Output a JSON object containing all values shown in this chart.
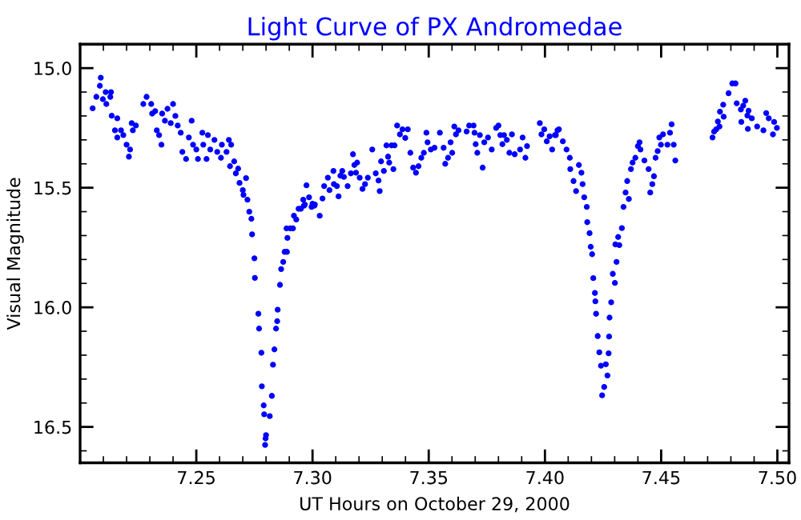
{
  "chart_data": {
    "type": "scatter",
    "title": "Light Curve of PX Andromedae",
    "xlabel": "UT Hours on October 29, 2000",
    "ylabel": "Visual Magnitude",
    "xlim": [
      7.2,
      7.505
    ],
    "ylim": [
      16.65,
      14.9
    ],
    "xticks": [
      {
        "value": 7.25,
        "label": "7.25"
      },
      {
        "value": 7.3,
        "label": "7.30"
      },
      {
        "value": 7.35,
        "label": "7.35"
      },
      {
        "value": 7.4,
        "label": "7.40"
      },
      {
        "value": 7.45,
        "label": "7.45"
      },
      {
        "value": 7.5,
        "label": "7.50"
      }
    ],
    "yticks": [
      {
        "value": 15.0,
        "label": "15.0"
      },
      {
        "value": 15.5,
        "label": "15.5"
      },
      {
        "value": 16.0,
        "label": "16.0"
      },
      {
        "value": 16.5,
        "label": "16.5"
      }
    ],
    "grid": false,
    "marker": "circle",
    "series": [
      {
        "color": "#0000ff",
        "x": [
          7.2054,
          7.2089,
          7.2085,
          7.207,
          7.2098,
          7.211,
          7.2133,
          7.213,
          7.2113,
          7.2136,
          7.216,
          7.215,
          7.216,
          7.2176,
          7.2186,
          7.22,
          7.221,
          7.2215,
          7.2222,
          7.2227,
          7.224,
          7.2272,
          7.2286,
          7.2306,
          7.231,
          7.2323,
          7.233,
          7.234,
          7.235,
          7.2353,
          7.2365,
          7.2376,
          7.239,
          7.24,
          7.241,
          7.242,
          7.2433,
          7.244,
          7.2456,
          7.2468,
          7.248,
          7.2486,
          7.25,
          7.2507,
          7.2526,
          7.253,
          7.2544,
          7.255,
          7.256,
          7.2578,
          7.259,
          7.2606,
          7.261,
          7.263,
          7.264,
          7.265,
          7.2645,
          7.2663,
          7.267,
          7.268,
          7.2686,
          7.27,
          7.2703,
          7.2714,
          7.272,
          7.2728,
          7.2737,
          7.274,
          7.275,
          7.2752,
          7.2767,
          7.277,
          7.278,
          7.2782,
          7.279,
          7.2792,
          7.2798,
          7.28,
          7.2796,
          7.2816,
          7.2825,
          7.283,
          7.2836,
          7.2843,
          7.2848,
          7.285,
          7.286,
          7.2865,
          7.2874,
          7.288,
          7.289,
          7.2892,
          7.2888,
          7.2904,
          7.2916,
          7.292,
          7.293,
          7.294,
          7.295,
          7.296,
          7.2963,
          7.2974,
          7.2985,
          7.3,
          7.3008,
          7.2967,
          7.2996,
          7.301,
          7.3031,
          7.3043,
          7.305,
          7.3066,
          7.3073,
          7.309,
          7.3092,
          7.3105,
          7.3112,
          7.312,
          7.3128,
          7.3135,
          7.3151,
          7.3165,
          7.3174,
          7.318,
          7.3187,
          7.3192,
          7.3203,
          7.3215,
          7.3226,
          7.3238,
          7.3257,
          7.3272,
          7.3284,
          7.3289,
          7.3295,
          7.3307,
          7.3318,
          7.3325,
          7.333,
          7.334,
          7.3348,
          7.3353,
          7.3364,
          7.3376,
          7.3387,
          7.3399,
          7.341,
          7.3421,
          7.3433,
          7.3445,
          7.3456,
          7.3468,
          7.3479,
          7.349,
          7.3495,
          7.3509,
          7.3525,
          7.3548,
          7.3564,
          7.3571,
          7.3583,
          7.3594,
          7.3601,
          7.361,
          7.3617,
          7.3628,
          7.3663,
          7.3674,
          7.3693,
          7.3697,
          7.3702,
          7.3709,
          7.372,
          7.3732,
          7.3739,
          7.3755,
          7.3771,
          7.379,
          7.38,
          7.3808,
          7.3817,
          7.3824,
          7.3836,
          7.3847,
          7.3858,
          7.387,
          7.3893,
          7.3904,
          7.3916,
          7.3923,
          7.3978,
          7.3985,
          7.3997,
          7.4008,
          7.402,
          7.4031,
          7.4043,
          7.4054,
          7.4047,
          7.406,
          7.4077,
          7.4093,
          7.4107,
          7.4109,
          7.4123,
          7.4134,
          7.4146,
          7.4157,
          7.4162,
          7.4169,
          7.418,
          7.4182,
          7.4192,
          7.4197,
          7.4203,
          7.4208,
          7.4215,
          7.4217,
          7.422,
          7.4227,
          7.4234,
          7.4241,
          7.4246,
          7.4255,
          7.4262,
          7.4269,
          7.4274,
          7.4276,
          7.4278,
          7.4285,
          7.4292,
          7.4301,
          7.4308,
          7.4303,
          7.432,
          7.4315,
          7.4331,
          7.4338,
          7.4347,
          7.4354,
          7.4361,
          7.437,
          7.4377,
          7.4389,
          7.44,
          7.4407,
          7.4411,
          7.4428,
          7.4446,
          7.4453,
          7.4462,
          7.4469,
          7.4476,
          7.4485,
          7.4492,
          7.4499,
          7.4508,
          7.4527,
          7.4538,
          7.4545,
          7.4554,
          7.4561,
          7.4721,
          7.4728,
          7.4737,
          7.4744,
          7.4751,
          7.4753,
          7.4767,
          7.4769,
          7.479,
          7.4806,
          7.482,
          7.4825,
          7.4843,
          7.4845,
          7.4853,
          7.4862,
          7.4871,
          7.4876,
          7.4873,
          7.489,
          7.4913,
          7.494,
          7.4952,
          7.4963,
          7.4981,
          7.4986,
          7.4998
        ],
        "values": [
          15.168,
          15.04,
          15.074,
          15.12,
          15.13,
          15.1,
          15.1,
          15.12,
          15.15,
          15.199,
          15.21,
          15.26,
          15.29,
          15.26,
          15.28,
          15.32,
          15.37,
          15.34,
          15.23,
          15.26,
          15.24,
          15.15,
          15.12,
          15.15,
          15.19,
          15.18,
          15.26,
          15.28,
          15.32,
          15.19,
          15.22,
          15.17,
          15.23,
          15.15,
          15.2,
          15.24,
          15.27,
          15.35,
          15.38,
          15.29,
          15.22,
          15.32,
          15.34,
          15.38,
          15.27,
          15.32,
          15.38,
          15.28,
          15.34,
          15.3,
          15.35,
          15.375,
          15.32,
          15.35,
          15.3,
          15.32,
          15.41,
          15.39,
          15.44,
          15.42,
          15.48,
          15.51,
          15.53,
          15.46,
          15.55,
          15.6,
          15.63,
          15.695,
          15.795,
          15.877,
          16.027,
          16.089,
          16.19,
          16.33,
          16.41,
          16.447,
          16.548,
          16.534,
          16.575,
          16.455,
          16.37,
          16.24,
          16.176,
          16.089,
          16.058,
          16.01,
          15.906,
          15.84,
          15.81,
          15.768,
          15.768,
          15.71,
          15.67,
          15.67,
          15.67,
          15.617,
          15.633,
          15.588,
          15.588,
          15.55,
          15.575,
          15.49,
          15.54,
          15.567,
          15.575,
          15.57,
          15.58,
          15.57,
          15.617,
          15.545,
          15.493,
          15.458,
          15.51,
          15.43,
          15.485,
          15.493,
          15.536,
          15.45,
          15.43,
          15.455,
          15.493,
          15.44,
          15.36,
          15.405,
          15.437,
          15.395,
          15.458,
          15.505,
          15.485,
          15.458,
          15.34,
          15.44,
          15.47,
          15.514,
          15.39,
          15.43,
          15.323,
          15.37,
          15.395,
          15.323,
          15.422,
          15.323,
          15.24,
          15.277,
          15.256,
          15.292,
          15.256,
          15.354,
          15.416,
          15.437,
          15.41,
          15.375,
          15.354,
          15.27,
          15.31,
          15.34,
          15.333,
          15.27,
          15.333,
          15.4,
          15.375,
          15.31,
          15.354,
          15.244,
          15.277,
          15.26,
          15.265,
          15.24,
          15.24,
          15.27,
          15.318,
          15.354,
          15.28,
          15.416,
          15.31,
          15.29,
          15.34,
          15.25,
          15.24,
          15.28,
          15.318,
          15.28,
          15.3,
          15.354,
          15.277,
          15.36,
          15.34,
          15.29,
          15.375,
          15.326,
          15.23,
          15.277,
          15.256,
          15.306,
          15.285,
          15.34,
          15.28,
          15.26,
          15.28,
          15.256,
          15.306,
          15.34,
          15.375,
          15.422,
          15.472,
          15.514,
          15.405,
          15.437,
          15.485,
          15.54,
          15.58,
          15.644,
          15.69,
          15.747,
          15.778,
          15.878,
          15.94,
          15.975,
          16.027,
          16.12,
          16.188,
          16.244,
          16.368,
          16.333,
          16.238,
          16.285,
          16.192,
          16.122,
          16.043,
          15.979,
          15.86,
          15.898,
          15.81,
          15.737,
          15.74,
          15.706,
          15.669,
          15.58,
          15.52,
          15.472,
          15.547,
          15.422,
          15.395,
          15.375,
          15.326,
          15.31,
          15.34,
          15.386,
          15.422,
          15.52,
          15.485,
          15.452,
          15.375,
          15.347,
          15.29,
          15.32,
          15.277,
          15.32,
          15.27,
          15.235,
          15.32,
          15.386,
          15.29,
          15.265,
          15.256,
          15.223,
          15.244,
          15.182,
          15.153,
          15.203,
          15.105,
          15.064,
          15.064,
          15.147,
          15.173,
          15.225,
          15.157,
          15.136,
          15.198,
          15.178,
          15.254,
          15.21,
          15.244,
          15.26,
          15.188,
          15.21,
          15.277,
          15.225,
          15.25
        ]
      }
    ]
  }
}
